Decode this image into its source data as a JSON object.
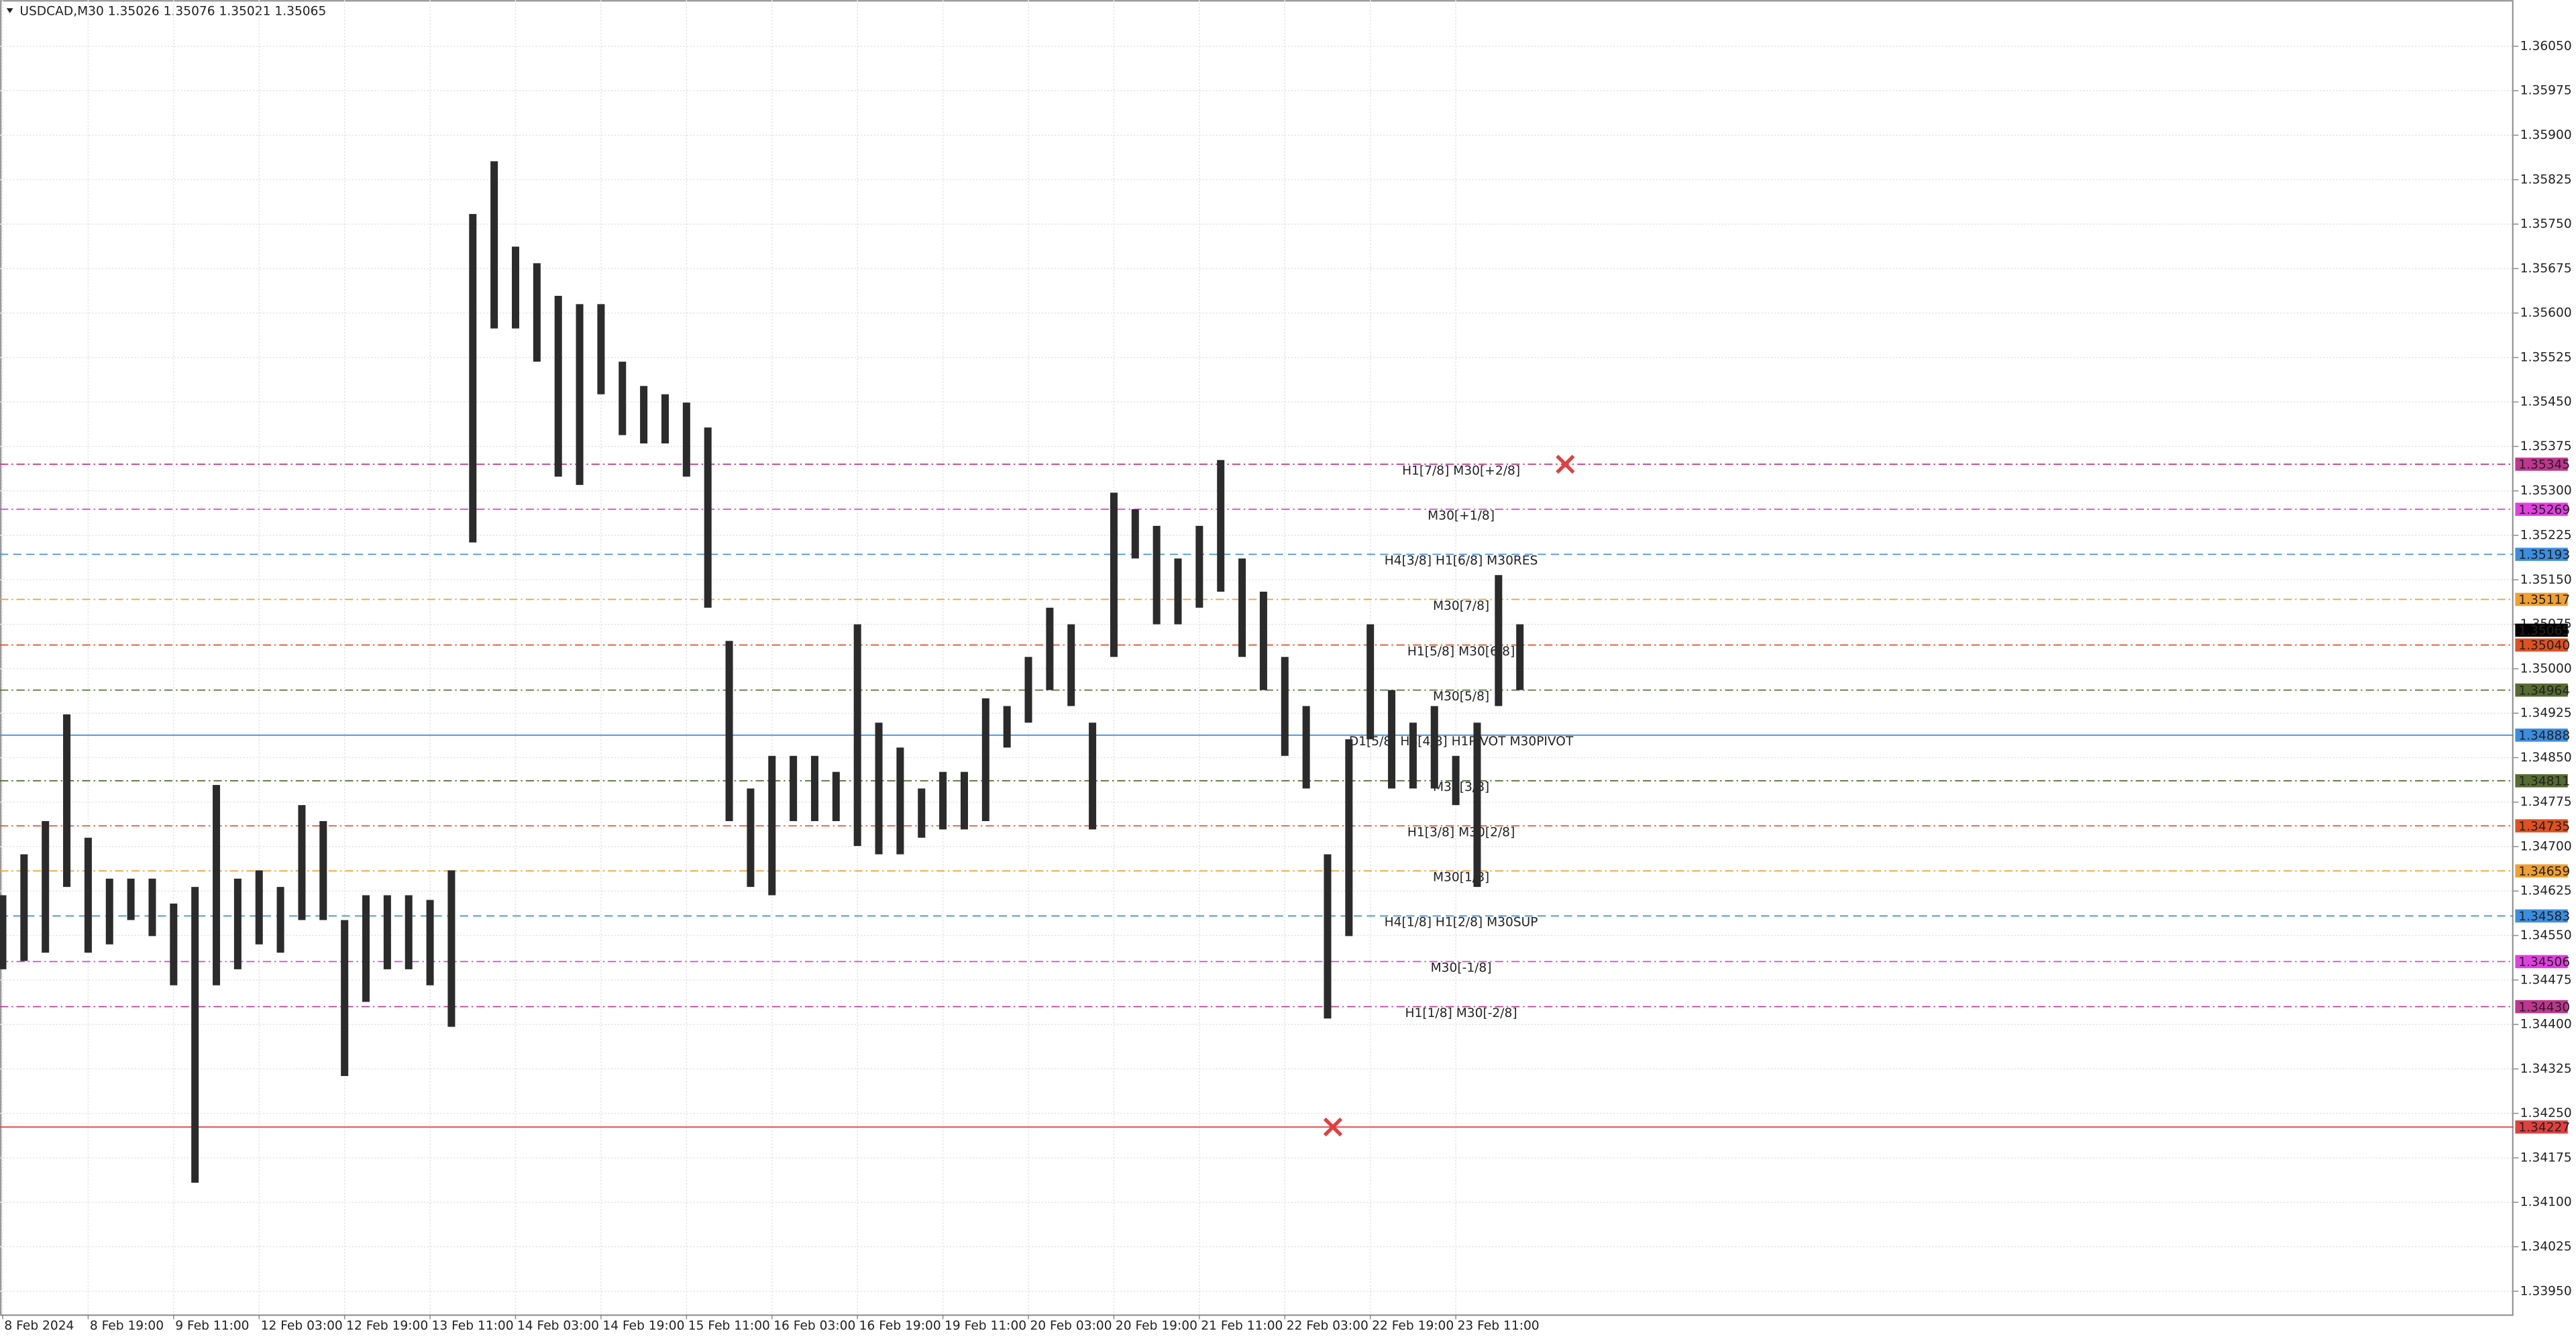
{
  "chart_data": {
    "type": "hilo",
    "header": "USDCAD,M30  1.35026 1.35076 1.35021 1.35065",
    "x": [
      0,
      8,
      16,
      24,
      32,
      40,
      48,
      56,
      64,
      72,
      80,
      88,
      96,
      104,
      112,
      120,
      128,
      136,
      144,
      152,
      160,
      168,
      176,
      184,
      192,
      200,
      208,
      216,
      224,
      232,
      240,
      248,
      256,
      264,
      272,
      280,
      288,
      296,
      304,
      312,
      320,
      328,
      336,
      344,
      352,
      360,
      368,
      376,
      384,
      392,
      400,
      408,
      416,
      424,
      432,
      440,
      448,
      456,
      464,
      472,
      480,
      488,
      496,
      504,
      512,
      520,
      528,
      536,
      544,
      552,
      560,
      568
    ],
    "series": [
      {
        "name": "high",
        "color": "#2b2b2b",
        "values": [
          1.34618,
          1.34687,
          1.34743,
          1.34923,
          1.34715,
          1.34646,
          1.34646,
          1.34646,
          1.34604,
          1.34632,
          1.34804,
          1.34646,
          1.3466,
          1.34632,
          1.3477,
          1.34743,
          1.34576,
          1.34618,
          1.34618,
          1.34618,
          1.3461,
          1.3466,
          1.35767,
          1.35856,
          1.35712,
          1.35684,
          1.35629,
          1.35615,
          1.35615,
          1.35518,
          1.35477,
          1.35463,
          1.35449,
          1.35407,
          1.35047,
          1.34798,
          1.34853,
          1.34853,
          1.34853,
          1.34826,
          1.35075,
          1.34909,
          1.34867,
          1.34798,
          1.34826,
          1.34826,
          1.3495,
          1.34937,
          1.3502,
          1.35103,
          1.35075,
          1.34909,
          1.35297,
          1.35269,
          1.35241,
          1.35186,
          1.35241,
          1.35352,
          1.35186,
          1.3513,
          1.3502,
          1.34937,
          1.34687,
          1.34881,
          1.35075,
          1.34964,
          1.34909,
          1.34937,
          1.34853,
          1.34909,
          1.35158,
          1.35075
        ]
      },
      {
        "name": "low",
        "color": "#2b2b2b",
        "values": [
          1.34493,
          1.34507,
          1.34521,
          1.34632,
          1.34521,
          1.34535,
          1.34576,
          1.34549,
          1.34466,
          1.34133,
          1.34466,
          1.34493,
          1.34535,
          1.34521,
          1.34576,
          1.34576,
          1.34313,
          1.34438,
          1.34493,
          1.34493,
          1.34466,
          1.34396,
          1.35213,
          1.35574,
          1.35574,
          1.35518,
          1.35324,
          1.3531,
          1.35463,
          1.35394,
          1.3538,
          1.3538,
          1.35324,
          1.35103,
          1.34743,
          1.34632,
          1.34618,
          1.34743,
          1.34743,
          1.34743,
          1.34701,
          1.34687,
          1.34687,
          1.34715,
          1.34729,
          1.34729,
          1.34743,
          1.34867,
          1.34909,
          1.34964,
          1.34937,
          1.34729,
          1.3502,
          1.35186,
          1.35075,
          1.35075,
          1.35103,
          1.3513,
          1.3502,
          1.34964,
          1.34853,
          1.34798,
          1.3441,
          1.34549,
          1.34881,
          1.34798,
          1.34798,
          1.34798,
          1.3477,
          1.34632,
          1.34937,
          1.34964
        ]
      }
    ],
    "levels": {
      "names": [
        "H1[7/8] M30[+2/8]",
        "M30[+1/8]",
        "H4[3/8] H1[6/8] M30RES",
        "M30[7/8]",
        "H1[5/8] M30[6/8]",
        "M30[5/8]",
        "D1[5/8] H4[4/8] H1PIVOT M30PIVOT",
        "M30[3/8]",
        "H1[3/8] M30[2/8]",
        "M30[1/8]",
        "H4[1/8] H1[2/8] M30SUP",
        "M30[-1/8]",
        "H1[1/8] M30[-2/8]",
        null,
        null
      ],
      "values": [
        1.35345,
        1.35269,
        1.35193,
        1.35117,
        1.3504,
        1.34964,
        1.34888,
        1.34811,
        1.34735,
        1.34659,
        1.34583,
        1.34506,
        1.3443,
        1.34227,
        1.35065
      ],
      "value_labels": [
        "1.35345",
        "1.35269",
        "1.35193",
        "1.35117",
        "1.35040",
        "1.34964",
        "1.34888",
        "1.34811",
        "1.34735",
        "1.34659",
        "1.34583",
        "1.34506",
        "1.34430",
        "1.34227",
        "1.35065"
      ],
      "colors": [
        "#c0358f",
        "#e040e0",
        "#3a8ee0",
        "#f0a030",
        "#e05020",
        "#556b2f",
        "#3a8ee0",
        "#556b2f",
        "#e05020",
        "#f0a030",
        "#3a8ee0",
        "#e040e0",
        "#c0358f",
        "#e04040",
        "#000000"
      ],
      "styles": [
        "dashdot",
        "dashdot",
        "dashed",
        "dashdot",
        "dashdot",
        "dashdot",
        "solid",
        "dashdot",
        "dashdot",
        "dashdot",
        "dashed",
        "dashdot",
        "dashdot",
        "solid",
        "none"
      ]
    },
    "markers": {
      "color": "#e04040",
      "x": [
        585,
        498
      ],
      "values": [
        1.35345,
        1.34227
      ]
    },
    "xlim": [
      -1,
      940
    ],
    "ylim": [
      1.33911,
      1.36128
    ],
    "xticks": [
      {
        "value": 0,
        "label": "8 Feb 2024"
      },
      {
        "value": 32,
        "label": "8 Feb 19:00"
      },
      {
        "value": 64,
        "label": "9 Feb 11:00"
      },
      {
        "value": 96,
        "label": "12 Feb 03:00"
      },
      {
        "value": 128,
        "label": "12 Feb 19:00"
      },
      {
        "value": 160,
        "label": "13 Feb 11:00"
      },
      {
        "value": 192,
        "label": "14 Feb 03:00"
      },
      {
        "value": 224,
        "label": "14 Feb 19:00"
      },
      {
        "value": 256,
        "label": "15 Feb 11:00"
      },
      {
        "value": 288,
        "label": "16 Feb 03:00"
      },
      {
        "value": 320,
        "label": "16 Feb 19:00"
      },
      {
        "value": 352,
        "label": "19 Feb 11:00"
      },
      {
        "value": 384,
        "label": "20 Feb 03:00"
      },
      {
        "value": 416,
        "label": "20 Feb 19:00"
      },
      {
        "value": 448,
        "label": "21 Feb 11:00"
      },
      {
        "value": 480,
        "label": "22 Feb 03:00"
      },
      {
        "value": 512,
        "label": "22 Feb 19:00"
      },
      {
        "value": 544,
        "label": "23 Feb 11:00"
      }
    ],
    "yticks": [
      {
        "value": 1.3605,
        "label": "1.36050"
      },
      1.35975,
      {
        "value": 1.359,
        "label": "1.35900"
      },
      1.35825,
      {
        "value": 1.3575,
        "label": "1.35750"
      },
      1.35675,
      {
        "value": 1.356,
        "label": "1.35600"
      },
      1.35525,
      {
        "value": 1.3545,
        "label": "1.35450"
      },
      1.35375,
      {
        "value": 1.353,
        "label": "1.35300"
      },
      1.35225,
      {
        "value": 1.3515,
        "label": "1.35150"
      },
      1.35075,
      {
        "value": 1.35,
        "label": "1.35000"
      },
      1.34925,
      {
        "value": 1.3485,
        "label": "1.34850"
      },
      1.34775,
      {
        "value": 1.347,
        "label": "1.34700"
      },
      1.34625,
      {
        "value": 1.3455,
        "label": "1.34550"
      },
      1.34475,
      {
        "value": 1.344,
        "label": "1.34400"
      },
      1.34325,
      {
        "value": 1.3425,
        "label": "1.34250"
      },
      1.34175,
      {
        "value": 1.341,
        "label": "1.34100"
      },
      1.34025,
      {
        "value": 1.3395,
        "label": "1.33950"
      }
    ],
    "grid": true
  }
}
